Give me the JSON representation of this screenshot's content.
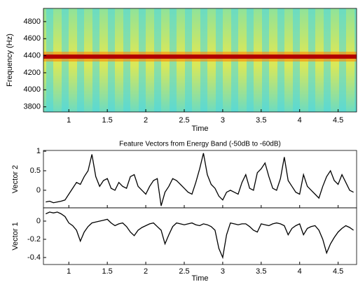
{
  "chart_data": [
    {
      "type": "spectrogram",
      "xlabel": "Time",
      "ylabel": "Frequency (Hz)",
      "xlim": [
        0.67,
        4.74
      ],
      "xticks": [
        1,
        1.5,
        2,
        2.5,
        3,
        3.5,
        4,
        4.5
      ],
      "ylim": [
        3740,
        4955
      ],
      "yticks": [
        3800,
        4000,
        4200,
        4400,
        4600,
        4800
      ],
      "carrier_hz": 4390
    },
    {
      "type": "line",
      "title": "Feature Vectors from Energy Band (-50dB to -60dB)",
      "ylabel": "Vector 2",
      "xlim": [
        0.67,
        4.74
      ],
      "xticks": [
        1,
        1.5,
        2,
        2.5,
        3,
        3.5,
        4,
        4.5
      ],
      "ylim": [
        -0.45,
        1.02
      ],
      "yticks": [
        0,
        0.5,
        1
      ],
      "x": [
        0.7,
        0.75,
        0.8,
        0.85,
        0.9,
        0.95,
        1,
        1.05,
        1.1,
        1.15,
        1.2,
        1.25,
        1.3,
        1.35,
        1.4,
        1.45,
        1.5,
        1.55,
        1.6,
        1.65,
        1.7,
        1.75,
        1.8,
        1.85,
        1.9,
        1.95,
        2,
        2.05,
        2.1,
        2.15,
        2.2,
        2.25,
        2.3,
        2.35,
        2.4,
        2.45,
        2.5,
        2.55,
        2.6,
        2.65,
        2.7,
        2.75,
        2.8,
        2.85,
        2.9,
        2.95,
        3,
        3.05,
        3.1,
        3.15,
        3.2,
        3.25,
        3.3,
        3.35,
        3.4,
        3.45,
        3.5,
        3.55,
        3.6,
        3.65,
        3.7,
        3.75,
        3.8,
        3.85,
        3.9,
        3.95,
        4,
        4.05,
        4.1,
        4.15,
        4.2,
        4.25,
        4.3,
        4.35,
        4.4,
        4.45,
        4.5,
        4.55,
        4.6,
        4.65,
        4.7
      ],
      "series": [
        {
          "color": "#000000",
          "values": [
            -0.3,
            -0.28,
            -0.32,
            -0.3,
            -0.28,
            -0.25,
            -0.1,
            0.05,
            0.2,
            0.15,
            0.35,
            0.5,
            0.92,
            0.35,
            0.1,
            0.25,
            0.3,
            0.05,
            0,
            0.2,
            0.1,
            0.05,
            0.35,
            0.4,
            0.1,
            0,
            -0.1,
            0.1,
            0.25,
            0.3,
            -0.4,
            -0.05,
            0.1,
            0.3,
            0.25,
            0.15,
            0.05,
            -0.05,
            -0.1,
            0.2,
            0.55,
            0.95,
            0.4,
            0.15,
            0.05,
            -0.15,
            -0.25,
            -0.05,
            0,
            -0.05,
            -0.1,
            0.2,
            0.4,
            0.05,
            0,
            0.45,
            0.55,
            0.7,
            0.35,
            0.05,
            0,
            0.3,
            0.85,
            0.25,
            0.1,
            -0.05,
            -0.1,
            0.4,
            0.1,
            0,
            -0.1,
            -0.2,
            0.1,
            0.35,
            0.5,
            0.25,
            0.15,
            0.4,
            0.2,
            0,
            -0.05
          ]
        }
      ]
    },
    {
      "type": "line",
      "xlabel": "Time",
      "ylabel": "Vector 1",
      "xlim": [
        0.67,
        4.74
      ],
      "xticks": [
        1,
        1.5,
        2,
        2.5,
        3,
        3.5,
        4,
        4.5
      ],
      "ylim": [
        -0.477,
        0.146
      ],
      "yticks": [
        -0.4,
        -0.2,
        0
      ],
      "x": [
        0.7,
        0.75,
        0.8,
        0.85,
        0.9,
        0.95,
        1,
        1.05,
        1.1,
        1.15,
        1.2,
        1.25,
        1.3,
        1.35,
        1.4,
        1.45,
        1.5,
        1.55,
        1.6,
        1.65,
        1.7,
        1.75,
        1.8,
        1.85,
        1.9,
        1.95,
        2,
        2.05,
        2.1,
        2.15,
        2.2,
        2.25,
        2.3,
        2.35,
        2.4,
        2.45,
        2.5,
        2.55,
        2.6,
        2.65,
        2.7,
        2.75,
        2.8,
        2.85,
        2.9,
        2.95,
        3,
        3.05,
        3.1,
        3.15,
        3.2,
        3.25,
        3.3,
        3.35,
        3.4,
        3.45,
        3.5,
        3.55,
        3.6,
        3.65,
        3.7,
        3.75,
        3.8,
        3.85,
        3.9,
        3.95,
        4,
        4.05,
        4.1,
        4.15,
        4.2,
        4.25,
        4.3,
        4.35,
        4.4,
        4.45,
        4.5,
        4.55,
        4.6,
        4.65,
        4.7
      ],
      "series": [
        {
          "color": "#000000",
          "values": [
            0.08,
            0.1,
            0.09,
            0.1,
            0.08,
            0.05,
            -0.02,
            -0.05,
            -0.1,
            -0.22,
            -0.12,
            -0.06,
            -0.02,
            -0.01,
            0,
            0.01,
            0.02,
            -0.02,
            -0.05,
            -0.03,
            -0.02,
            -0.06,
            -0.12,
            -0.16,
            -0.1,
            -0.07,
            -0.05,
            -0.03,
            -0.02,
            -0.06,
            -0.1,
            -0.25,
            -0.15,
            -0.06,
            -0.02,
            -0.03,
            -0.04,
            -0.03,
            -0.02,
            -0.04,
            -0.05,
            -0.03,
            -0.04,
            -0.06,
            -0.1,
            -0.3,
            -0.4,
            -0.15,
            -0.02,
            -0.03,
            -0.04,
            -0.03,
            -0.03,
            -0.06,
            -0.1,
            -0.12,
            -0.03,
            -0.04,
            -0.05,
            -0.03,
            -0.02,
            -0.03,
            -0.05,
            -0.15,
            -0.08,
            -0.05,
            -0.03,
            -0.15,
            -0.08,
            -0.06,
            -0.05,
            -0.1,
            -0.2,
            -0.35,
            -0.25,
            -0.18,
            -0.12,
            -0.08,
            -0.05,
            -0.07,
            -0.1
          ]
        }
      ]
    }
  ]
}
